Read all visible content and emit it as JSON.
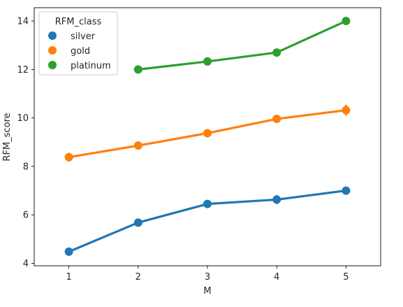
{
  "chart_data": {
    "type": "line",
    "xlabel": "M",
    "ylabel": "RFM_score",
    "x": [
      1,
      2,
      3,
      4,
      5
    ],
    "xlim": [
      0.5,
      5.5
    ],
    "ylim": [
      3.9,
      14.55
    ],
    "yticks": [
      4,
      6,
      8,
      10,
      12,
      14
    ],
    "grid": false,
    "legend": {
      "title": "RFM_class",
      "placement": "top-left"
    },
    "series": [
      {
        "name": "silver",
        "color": "#1f77b4",
        "points": [
          {
            "x": 1,
            "y": 4.48
          },
          {
            "x": 2,
            "y": 5.68
          },
          {
            "x": 3,
            "y": 6.45
          },
          {
            "x": 4,
            "y": 6.63,
            "err": 0.18
          },
          {
            "x": 5,
            "y": 7.0
          }
        ]
      },
      {
        "name": "gold",
        "color": "#ff7f0e",
        "points": [
          {
            "x": 1,
            "y": 8.38,
            "err": 0.18
          },
          {
            "x": 2,
            "y": 8.86
          },
          {
            "x": 3,
            "y": 9.37
          },
          {
            "x": 4,
            "y": 9.96
          },
          {
            "x": 5,
            "y": 10.32,
            "err": 0.22
          }
        ]
      },
      {
        "name": "platinum",
        "color": "#2ca02c",
        "points": [
          {
            "x": 2,
            "y": 12.0
          },
          {
            "x": 3,
            "y": 12.33
          },
          {
            "x": 4,
            "y": 12.7
          },
          {
            "x": 5,
            "y": 14.0
          }
        ]
      }
    ]
  }
}
